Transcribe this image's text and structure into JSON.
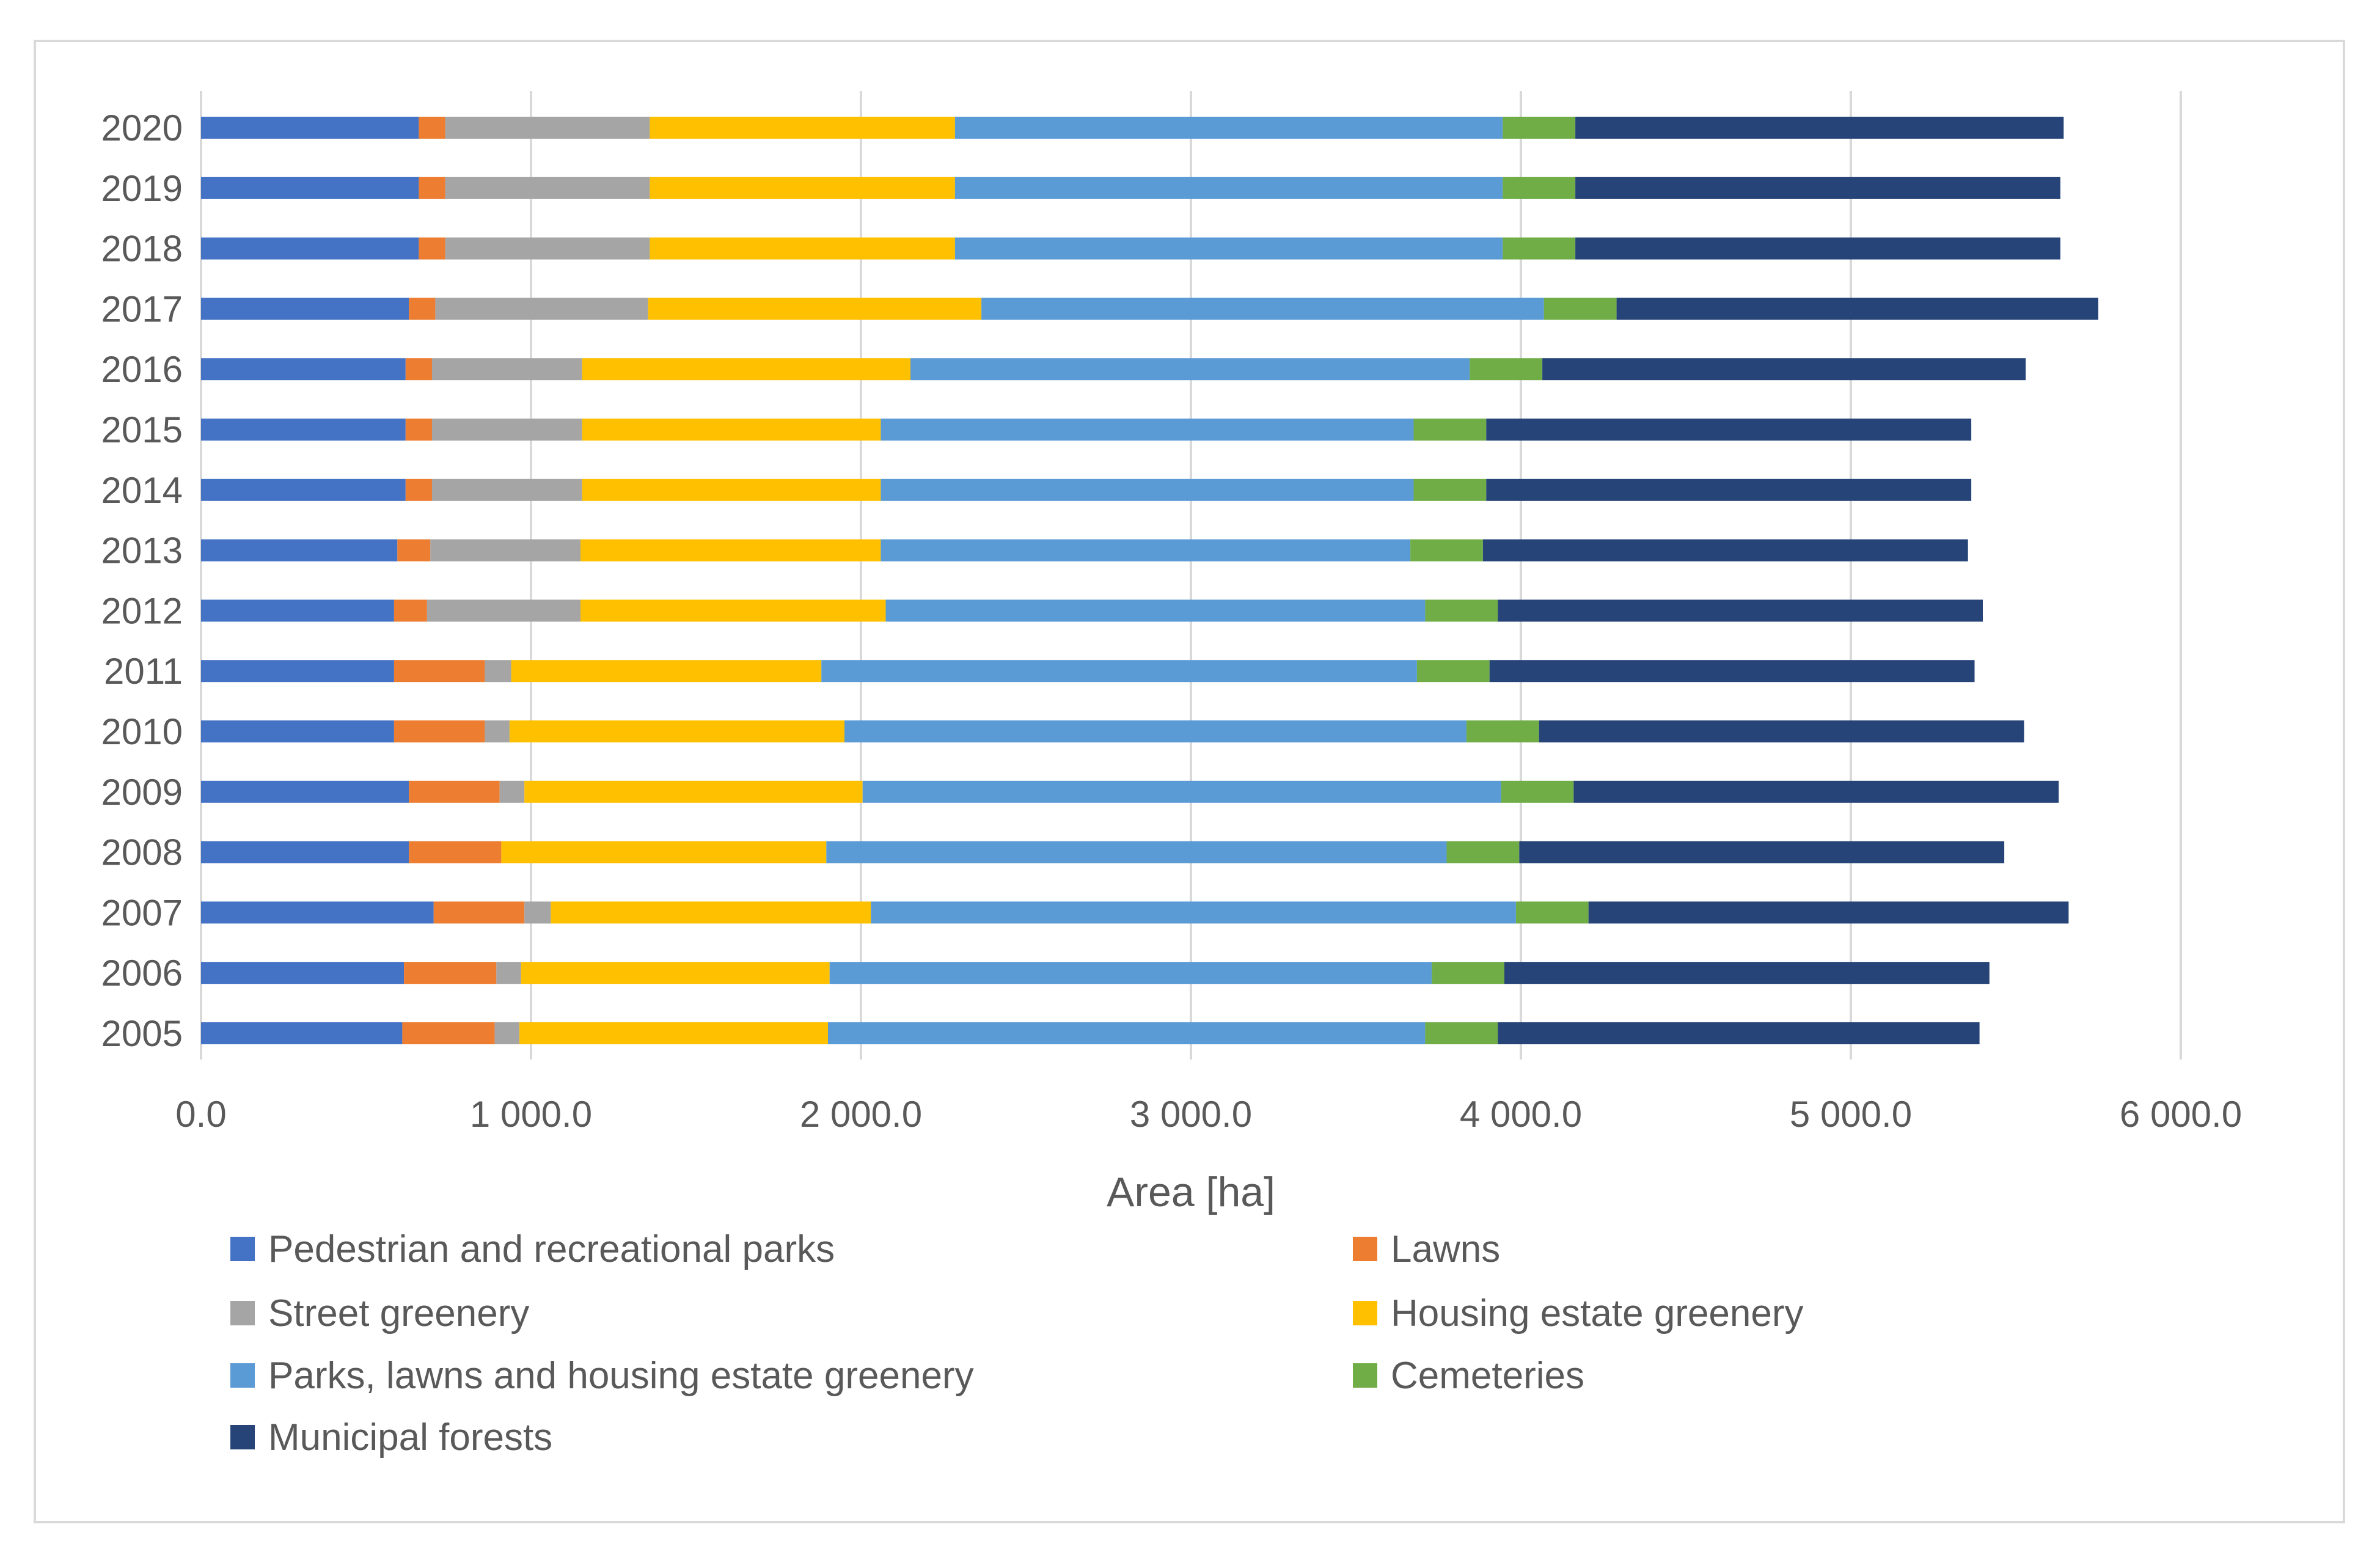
{
  "chart_data": {
    "type": "bar",
    "orientation": "horizontal",
    "stacked": true,
    "title": "",
    "xlabel": "Area [ha]",
    "ylabel": "",
    "xlim": [
      0,
      6000
    ],
    "xticks": [
      0,
      1000,
      2000,
      3000,
      4000,
      5000,
      6000
    ],
    "xtick_labels": [
      "0.0",
      "1 000.0",
      "2 000.0",
      "3 000.0",
      "4 000.0",
      "5 000.0",
      "6 000.0"
    ],
    "grid": "vertical",
    "legend_position": "bottom",
    "categories": [
      "2020",
      "2019",
      "2018",
      "2017",
      "2016",
      "2015",
      "2014",
      "2013",
      "2012",
      "2011",
      "2010",
      "2009",
      "2008",
      "2007",
      "2006",
      "2005"
    ],
    "series": [
      {
        "name": "Pedestrian and recreational parks",
        "color": "#4472c4",
        "values": [
          660,
          660,
          660,
          630,
          620,
          620,
          620,
          595,
          585,
          585,
          585,
          630,
          630,
          705,
          615,
          610
        ]
      },
      {
        "name": "Lawns",
        "color": "#ed7d31",
        "values": [
          80,
          80,
          80,
          80,
          80,
          80,
          80,
          100,
          100,
          275,
          275,
          275,
          280,
          275,
          280,
          280
        ]
      },
      {
        "name": "Street greenery",
        "color": "#a5a5a5",
        "values": [
          620,
          620,
          620,
          645,
          455,
          455,
          455,
          455,
          465,
          80,
          75,
          75,
          0,
          80,
          75,
          75
        ]
      },
      {
        "name": "Housing estate greenery",
        "color": "#ffc000",
        "values": [
          925,
          925,
          925,
          1010,
          995,
          905,
          905,
          910,
          925,
          940,
          1015,
          1025,
          985,
          970,
          935,
          935
        ]
      },
      {
        "name": "Parks, lawns and housing estate greenery",
        "color": "#5b9bd5",
        "values": [
          1660,
          1660,
          1660,
          1705,
          1695,
          1615,
          1615,
          1605,
          1635,
          1805,
          1885,
          1935,
          1880,
          1955,
          1825,
          1810
        ]
      },
      {
        "name": "Cemeteries",
        "color": "#70ad47",
        "values": [
          220,
          220,
          220,
          220,
          220,
          220,
          220,
          220,
          220,
          220,
          220,
          220,
          220,
          220,
          220,
          220
        ]
      },
      {
        "name": "Municipal forests",
        "color": "#264478",
        "values": [
          1480,
          1470,
          1470,
          1460,
          1465,
          1470,
          1470,
          1470,
          1470,
          1470,
          1470,
          1470,
          1470,
          1455,
          1470,
          1460
        ]
      }
    ]
  }
}
